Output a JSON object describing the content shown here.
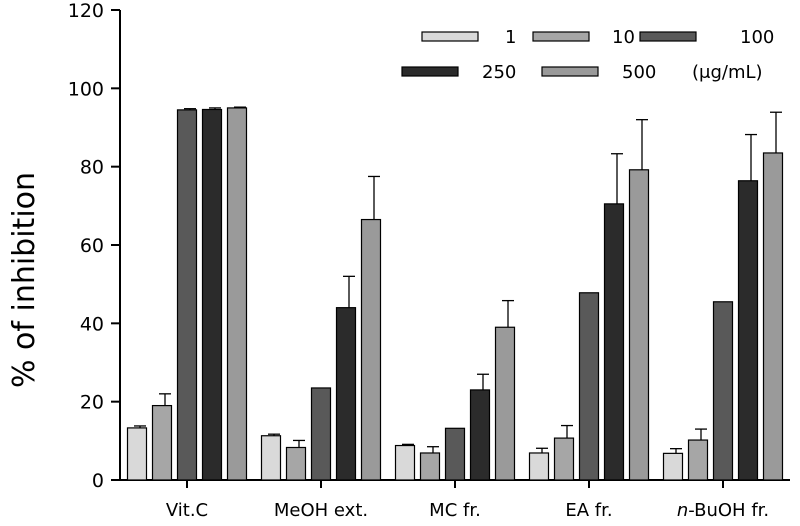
{
  "chart_data": {
    "type": "bar",
    "ylabel": "% of inhibition",
    "xlabel": "",
    "title": "",
    "ylim": [
      0,
      120
    ],
    "yticks": [
      0,
      20,
      40,
      60,
      80,
      100,
      120
    ],
    "grid": false,
    "legend_position": "top-right",
    "legend_unit": "(μg/mL)",
    "categories": [
      "Vit.C",
      "MeOH ext.",
      "MC fr.",
      "EA fr.",
      "n-BuOH fr."
    ],
    "category_labels": [
      {
        "prefix": "",
        "italic": "",
        "rest": "Vit.C"
      },
      {
        "prefix": "",
        "italic": "",
        "rest": "MeOH ext."
      },
      {
        "prefix": "",
        "italic": "",
        "rest": "MC fr."
      },
      {
        "prefix": "",
        "italic": "",
        "rest": "EA fr."
      },
      {
        "prefix": "",
        "italic": "n",
        "rest": "-BuOH fr."
      }
    ],
    "series": [
      {
        "name": "1",
        "color": "#d9d9d9",
        "values": [
          13.3,
          11.3,
          8.8,
          6.9,
          6.8
        ],
        "errors": [
          0.5,
          0.4,
          0.3,
          1.2,
          1.2
        ]
      },
      {
        "name": "10",
        "color": "#a6a6a6",
        "values": [
          19.0,
          8.3,
          6.9,
          10.7,
          10.2
        ],
        "errors": [
          3.0,
          1.8,
          1.6,
          3.2,
          2.8
        ]
      },
      {
        "name": "100",
        "color": "#595959",
        "values": [
          94.5,
          23.5,
          13.2,
          47.8,
          45.5
        ],
        "errors": [
          0.3,
          0,
          0,
          0,
          0
        ]
      },
      {
        "name": "250",
        "color": "#2b2b2b",
        "values": [
          94.6,
          44.0,
          23.0,
          70.5,
          76.4
        ],
        "errors": [
          0.4,
          8.0,
          4.0,
          12.8,
          11.8
        ]
      },
      {
        "name": "500",
        "color": "#9a9a9a",
        "values": [
          95.0,
          66.5,
          39.0,
          79.2,
          83.5
        ],
        "errors": [
          0.2,
          11.0,
          6.8,
          12.8,
          10.4
        ]
      }
    ]
  }
}
